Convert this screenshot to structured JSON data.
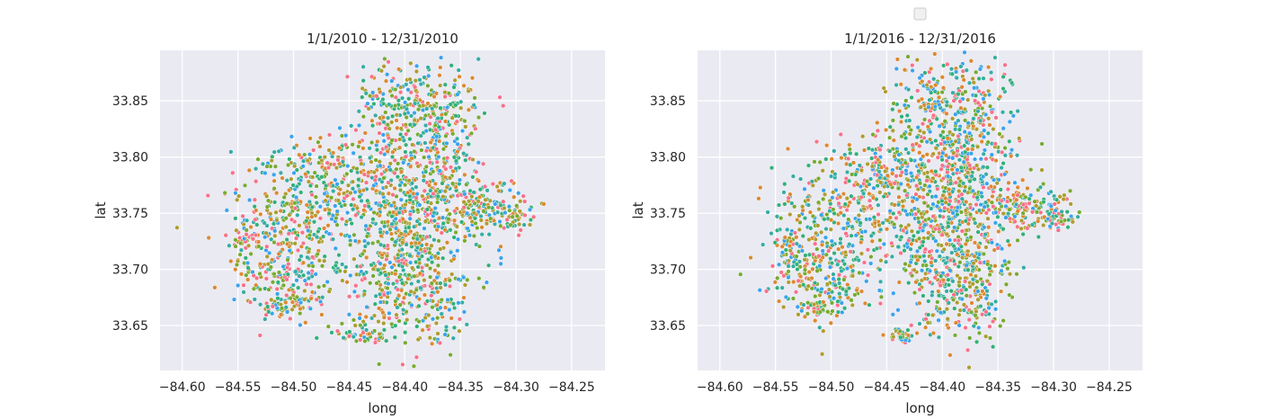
{
  "figure": {
    "legend": {
      "placement": "top-center",
      "entries": []
    }
  },
  "chart_data": [
    {
      "type": "scatter",
      "title": "1/1/2010 - 12/31/2010",
      "xlabel": "long",
      "ylabel": "lat",
      "xlim": [
        -84.62,
        -84.22
      ],
      "ylim": [
        33.61,
        33.895
      ],
      "xticks": [
        -84.6,
        -84.55,
        -84.5,
        -84.45,
        -84.4,
        -84.35,
        -84.3,
        -84.25
      ],
      "xtick_labels": [
        "−84.60",
        "−84.55",
        "−84.50",
        "−84.45",
        "−84.40",
        "−84.35",
        "−84.30",
        "−84.25"
      ],
      "yticks": [
        33.65,
        33.7,
        33.75,
        33.8,
        33.85
      ],
      "ytick_labels": [
        "33.65",
        "33.70",
        "33.75",
        "33.80",
        "33.85"
      ],
      "grid": true,
      "background": "#eaeaf2",
      "point_colors": [
        "#f77189",
        "#dc8932",
        "#ae9d31",
        "#77ab31",
        "#33b07a",
        "#36ada4",
        "#3ba3ec"
      ],
      "clusters": [
        {
          "cx": -84.405,
          "cy": 33.75,
          "sx": 0.035,
          "sy": 0.03,
          "n": 520
        },
        {
          "cx": -84.37,
          "cy": 33.82,
          "sx": 0.02,
          "sy": 0.035,
          "n": 300
        },
        {
          "cx": -84.41,
          "cy": 33.84,
          "sx": 0.02,
          "sy": 0.025,
          "n": 170
        },
        {
          "cx": -84.47,
          "cy": 33.79,
          "sx": 0.025,
          "sy": 0.015,
          "n": 140
        },
        {
          "cx": -84.5,
          "cy": 33.75,
          "sx": 0.03,
          "sy": 0.02,
          "n": 200
        },
        {
          "cx": -84.52,
          "cy": 33.7,
          "sx": 0.02,
          "sy": 0.02,
          "n": 130
        },
        {
          "cx": -84.49,
          "cy": 33.69,
          "sx": 0.02,
          "sy": 0.02,
          "n": 110
        },
        {
          "cx": -84.405,
          "cy": 33.69,
          "sx": 0.02,
          "sy": 0.025,
          "n": 220
        },
        {
          "cx": -84.37,
          "cy": 33.68,
          "sx": 0.015,
          "sy": 0.025,
          "n": 120
        },
        {
          "cx": -84.33,
          "cy": 33.755,
          "sx": 0.02,
          "sy": 0.01,
          "n": 140
        },
        {
          "cx": -84.3,
          "cy": 33.745,
          "sx": 0.008,
          "sy": 0.005,
          "n": 35
        },
        {
          "cx": -84.435,
          "cy": 33.641,
          "sx": 0.012,
          "sy": 0.003,
          "n": 40
        },
        {
          "cx": -84.43,
          "cy": 33.655,
          "sx": 0.008,
          "sy": 0.003,
          "n": 10
        },
        {
          "cx": -84.54,
          "cy": 33.73,
          "sx": 0.006,
          "sy": 0.006,
          "n": 25
        },
        {
          "cx": -84.51,
          "cy": 33.665,
          "sx": 0.01,
          "sy": 0.005,
          "n": 30
        }
      ]
    },
    {
      "type": "scatter",
      "title": "1/1/2016 - 12/31/2016",
      "xlabel": "long",
      "ylabel": "lat",
      "xlim": [
        -84.62,
        -84.22
      ],
      "ylim": [
        33.61,
        33.895
      ],
      "xticks": [
        -84.6,
        -84.55,
        -84.5,
        -84.45,
        -84.4,
        -84.35,
        -84.3,
        -84.25
      ],
      "xtick_labels": [
        "−84.60",
        "−84.55",
        "−84.50",
        "−84.45",
        "−84.40",
        "−84.35",
        "−84.30",
        "−84.25"
      ],
      "yticks": [
        33.65,
        33.7,
        33.75,
        33.8,
        33.85
      ],
      "ytick_labels": [
        "33.65",
        "33.70",
        "33.75",
        "33.80",
        "33.85"
      ],
      "grid": true,
      "background": "#eaeaf2",
      "point_colors": [
        "#f77189",
        "#dc8932",
        "#ae9d31",
        "#77ab31",
        "#33b07a",
        "#36ada4",
        "#3ba3ec"
      ],
      "clusters": [
        {
          "cx": -84.4,
          "cy": 33.75,
          "sx": 0.035,
          "sy": 0.03,
          "n": 520
        },
        {
          "cx": -84.375,
          "cy": 33.82,
          "sx": 0.02,
          "sy": 0.035,
          "n": 300
        },
        {
          "cx": -84.41,
          "cy": 33.845,
          "sx": 0.02,
          "sy": 0.02,
          "n": 150
        },
        {
          "cx": -84.46,
          "cy": 33.79,
          "sx": 0.025,
          "sy": 0.015,
          "n": 140
        },
        {
          "cx": -84.49,
          "cy": 33.75,
          "sx": 0.03,
          "sy": 0.02,
          "n": 200
        },
        {
          "cx": -84.52,
          "cy": 33.7,
          "sx": 0.02,
          "sy": 0.02,
          "n": 130
        },
        {
          "cx": -84.49,
          "cy": 33.69,
          "sx": 0.02,
          "sy": 0.02,
          "n": 110
        },
        {
          "cx": -84.4,
          "cy": 33.69,
          "sx": 0.02,
          "sy": 0.025,
          "n": 220
        },
        {
          "cx": -84.37,
          "cy": 33.68,
          "sx": 0.015,
          "sy": 0.025,
          "n": 120
        },
        {
          "cx": -84.33,
          "cy": 33.755,
          "sx": 0.02,
          "sy": 0.01,
          "n": 140
        },
        {
          "cx": -84.3,
          "cy": 33.745,
          "sx": 0.008,
          "sy": 0.005,
          "n": 35
        },
        {
          "cx": -84.437,
          "cy": 33.641,
          "sx": 0.006,
          "sy": 0.003,
          "n": 35
        },
        {
          "cx": -84.54,
          "cy": 33.725,
          "sx": 0.006,
          "sy": 0.006,
          "n": 25
        },
        {
          "cx": -84.51,
          "cy": 33.665,
          "sx": 0.01,
          "sy": 0.005,
          "n": 30
        }
      ]
    }
  ]
}
